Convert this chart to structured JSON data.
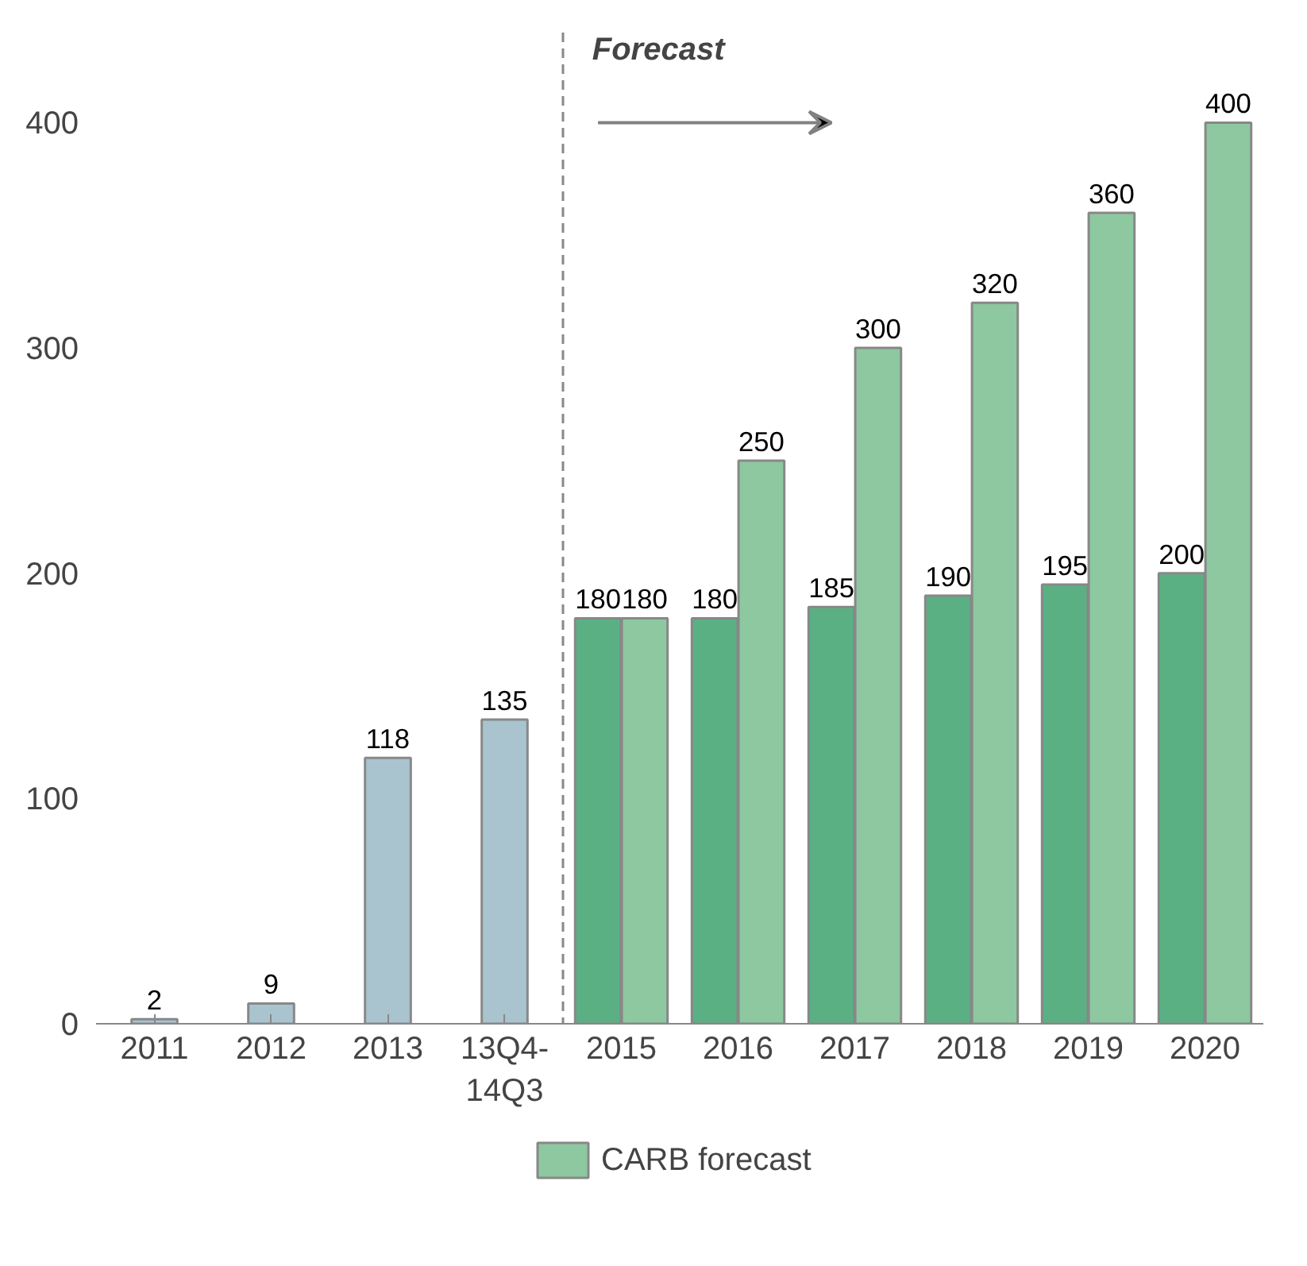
{
  "chart_data": {
    "type": "bar",
    "categories": [
      "2011",
      "2012",
      "2013",
      "13Q4-\n14Q3",
      "2015",
      "2016",
      "2017",
      "2018",
      "2019",
      "2020"
    ],
    "series": [
      {
        "color": "#a9c4cf",
        "values": [
          2,
          9,
          118,
          135,
          null,
          null,
          null,
          null,
          null,
          null
        ]
      },
      {
        "color": "#5bb083",
        "values": [
          null,
          null,
          null,
          null,
          180,
          180,
          185,
          190,
          195,
          200
        ]
      },
      {
        "name": "CARB forecast",
        "color": "#8dc8a0",
        "values": [
          null,
          null,
          null,
          null,
          180,
          250,
          300,
          320,
          360,
          400
        ]
      }
    ],
    "ylim": [
      0,
      440
    ],
    "yticks": [
      0,
      100,
      200,
      300,
      400
    ],
    "data_labels": true,
    "grid": false,
    "legend": "bottom",
    "annotations": [
      "Forecast"
    ]
  }
}
